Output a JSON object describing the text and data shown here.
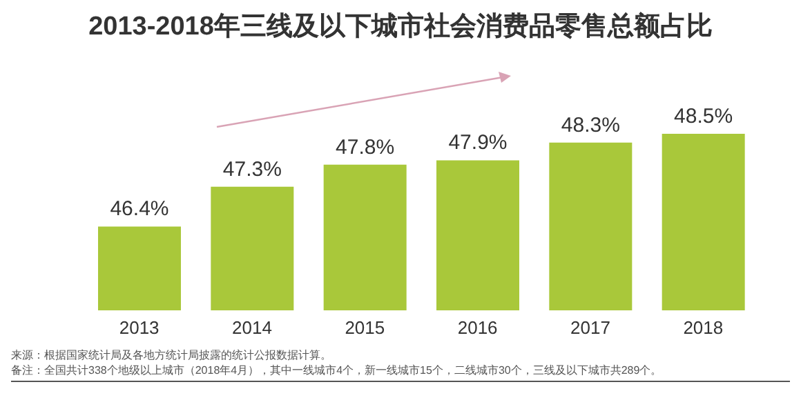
{
  "chart_data": {
    "type": "bar",
    "title": "2013-2018年三线及以下城市社会消费品零售总额占比",
    "categories": [
      "2013",
      "2014",
      "2015",
      "2016",
      "2017",
      "2018"
    ],
    "values": [
      46.4,
      47.3,
      47.8,
      47.9,
      48.3,
      48.5
    ],
    "value_labels": [
      "46.4%",
      "47.3%",
      "47.8%",
      "47.9%",
      "48.3%",
      "48.5%"
    ],
    "color": "#a9c83a",
    "ylim": [
      44.5,
      48.5
    ],
    "tick_labels": "x",
    "grid": false,
    "legend": false,
    "annotations": [
      "来源：根据国家统计局及各地方统计局披露的统计公报数据计算。",
      "备注：全国共计338个地级以上城市（2018年4月），其中一线城市4个，新一线城市15个，二线城市30个，三线及以下城市共289个。"
    ]
  }
}
